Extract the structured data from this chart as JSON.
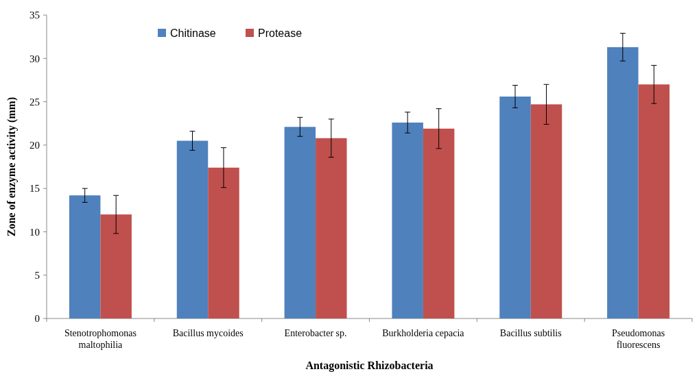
{
  "chart_data": {
    "type": "bar",
    "xlabel": "Antagonistic Rhizobacteria",
    "ylabel": "Zone of enzyme activity (mm)",
    "categories": [
      "Stenotrophomonas maltophilia",
      "Bacillus mycoides",
      "Enterobacter sp.",
      "Burkholderia cepacia",
      "Bacillus subtilis",
      "Pseudomonas fluorescens"
    ],
    "series": [
      {
        "name": "Chitinase",
        "color": "#4f81bd",
        "values": [
          14.2,
          20.5,
          22.1,
          22.6,
          25.6,
          31.3
        ],
        "errors": [
          0.8,
          1.1,
          1.1,
          1.2,
          1.3,
          1.6
        ]
      },
      {
        "name": "Protease",
        "color": "#c0504d",
        "values": [
          12.0,
          17.4,
          20.8,
          21.9,
          24.7,
          27.0
        ],
        "errors": [
          2.2,
          2.3,
          2.2,
          2.3,
          2.3,
          2.2
        ]
      }
    ],
    "ylim": [
      0,
      35
    ],
    "yticks": [
      0,
      5,
      10,
      15,
      20,
      25,
      30,
      35
    ],
    "grid": false,
    "legend": "top left"
  }
}
